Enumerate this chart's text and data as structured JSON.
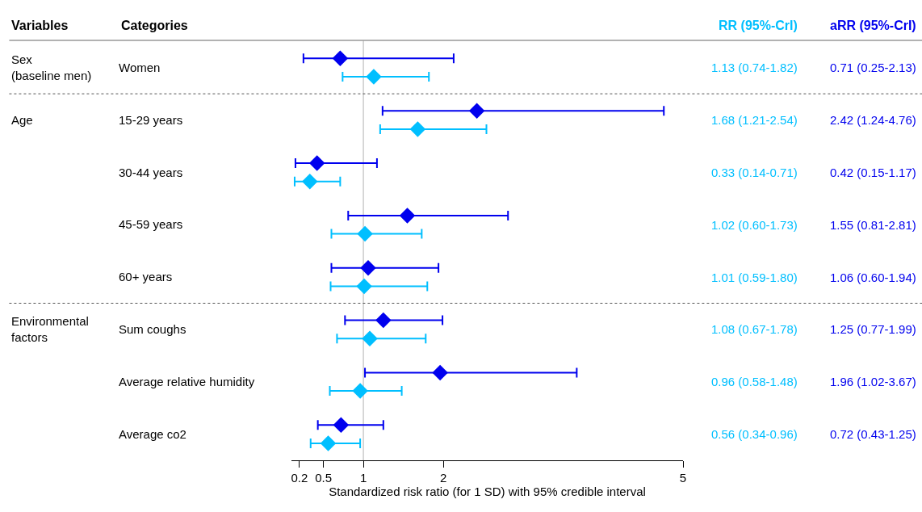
{
  "chart_data": {
    "type": "scatter",
    "xlabel": "Standardized risk ratio (for 1 SD) with 95% credible interval",
    "categories": [
      "Women",
      "15-29 years",
      "30-44 years",
      "45-59 years",
      "60+ years",
      "Sum coughs",
      "Average relative humidity",
      "Average co2"
    ],
    "series": [
      {
        "name": "RR (95%-CrI)",
        "color": "#00bfff",
        "values": [
          1.13,
          1.68,
          0.33,
          1.02,
          1.01,
          1.08,
          0.96,
          0.56
        ],
        "errors": [
          [
            0.74,
            1.82
          ],
          [
            1.21,
            2.54
          ],
          [
            0.14,
            0.71
          ],
          [
            0.6,
            1.73
          ],
          [
            0.59,
            1.8
          ],
          [
            0.67,
            1.78
          ],
          [
            0.58,
            1.48
          ],
          [
            0.34,
            0.96
          ]
        ],
        "value_labels": [
          "1.13 (0.74-1.82)",
          "1.68 (1.21-2.54)",
          "0.33 (0.14-0.71)",
          "1.02 (0.60-1.73)",
          "1.01 (0.59-1.80)",
          "1.08 (0.67-1.78)",
          "0.96 (0.58-1.48)",
          "0.56 (0.34-0.96)"
        ]
      },
      {
        "name": "aRR (95%-CrI)",
        "color": "#0000ee",
        "values": [
          0.71,
          2.42,
          0.42,
          1.55,
          1.06,
          1.25,
          1.96,
          0.72
        ],
        "errors": [
          [
            0.25,
            2.13
          ],
          [
            1.24,
            4.76
          ],
          [
            0.15,
            1.17
          ],
          [
            0.81,
            2.81
          ],
          [
            0.6,
            1.94
          ],
          [
            0.77,
            1.99
          ],
          [
            1.02,
            3.67
          ],
          [
            0.43,
            1.25
          ]
        ],
        "value_labels": [
          "0.71 (0.25-2.13)",
          "2.42 (1.24-4.76)",
          "0.42 (0.15-1.17)",
          "1.55 (0.81-2.81)",
          "1.06 (0.60-1.94)",
          "1.25 (0.77-1.99)",
          "1.96 (1.02-3.67)",
          "0.72 (0.43-1.25)"
        ]
      }
    ],
    "annotations": [
      "Variables",
      "Categories",
      "Sex\n(baseline men)",
      "Age",
      "Environmental\nfactors"
    ],
    "xlim": [
      0.1,
      5
    ],
    "xticks": [
      0.2,
      0.5,
      1,
      2,
      5
    ],
    "ref_lines": [
      {
        "axis": "x",
        "value": 1,
        "color": "#cccccc"
      }
    ],
    "orientation": "horizontal",
    "marker": "diamond",
    "grid": false,
    "legend": false
  }
}
